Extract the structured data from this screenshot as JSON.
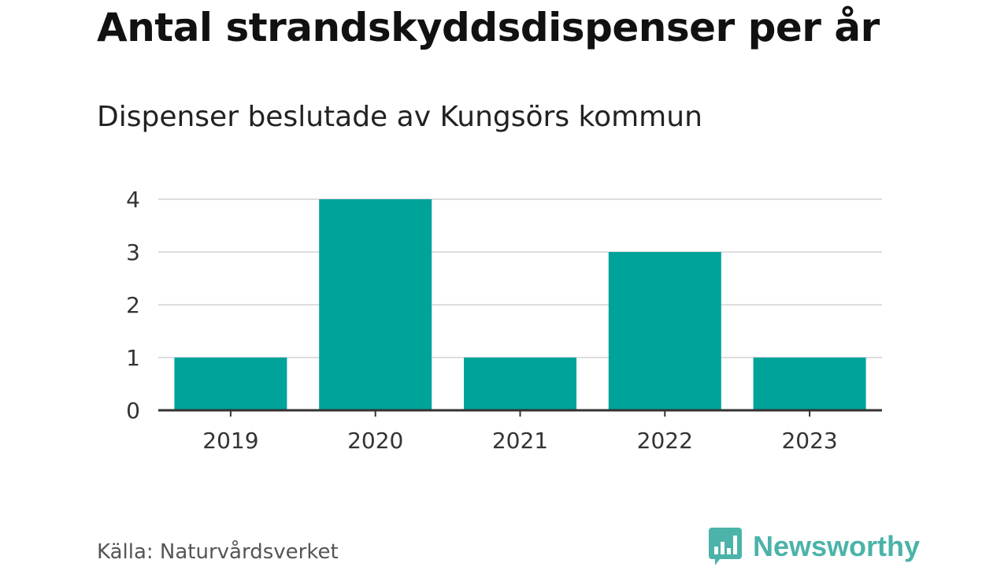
{
  "chart_data": {
    "type": "bar",
    "title": "Antal strandskyddsdispenser per år",
    "subtitle": "Dispenser beslutade av Kungsörs kommun",
    "categories": [
      "2019",
      "2020",
      "2021",
      "2022",
      "2023"
    ],
    "values": [
      1,
      4,
      1,
      3,
      1
    ],
    "yticks": [
      "0",
      "1",
      "2",
      "3",
      "4"
    ],
    "ylim": [
      0,
      4
    ],
    "xlabel": "",
    "ylabel": "",
    "grid": true,
    "bar_color": "#00a39a"
  },
  "source": "Källa: Naturvårdsverket",
  "logo": {
    "text": "Newsworthy",
    "icon": "newsworthy-bar-chart-icon",
    "color": "#4bb3a9"
  }
}
